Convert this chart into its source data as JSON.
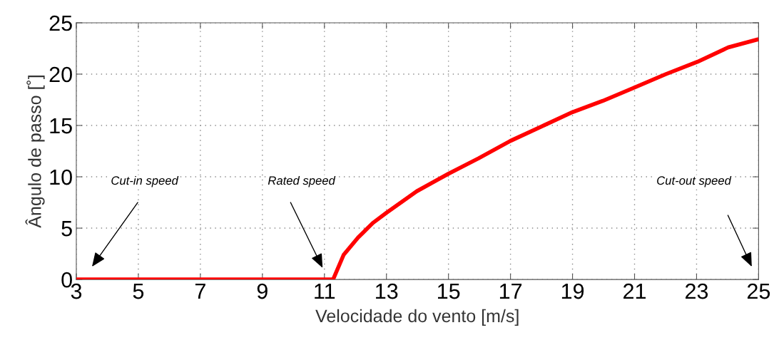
{
  "chart_data": {
    "type": "line",
    "xlabel": "Velocidade do vento [m/s]",
    "ylabel": "Ângulo de passo [˚]",
    "x": [
      3,
      11.28,
      11.62,
      12.09,
      12.56,
      13,
      13.98,
      15,
      15.97,
      17,
      18,
      19,
      19.98,
      21,
      22.01,
      23.03,
      24.02,
      25
    ],
    "series": [
      {
        "color": "#ff0000",
        "values": [
          0,
          0,
          2.4,
          4.1,
          5.5,
          6.5,
          8.6,
          10.3,
          11.8,
          13.5,
          14.9,
          16.3,
          17.4,
          18.7,
          20.0,
          21.2,
          22.6,
          23.4
        ]
      }
    ],
    "xlim": [
      3,
      25
    ],
    "xticks": [
      3,
      5,
      7,
      9,
      11,
      13,
      15,
      17,
      19,
      21,
      23,
      25
    ],
    "ylim": [
      0,
      25
    ],
    "yticks": [
      0,
      5,
      10,
      15,
      20,
      25
    ],
    "grid": true,
    "legend": false,
    "marker": "none",
    "line_style": "solid",
    "annotations": [
      "Cut-in speed",
      "Rated speed",
      "Cut-out speed"
    ]
  }
}
